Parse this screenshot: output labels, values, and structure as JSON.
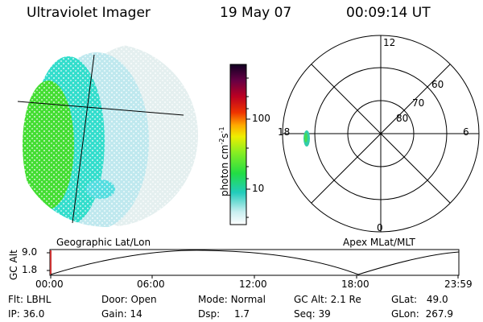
{
  "header": {
    "instrument": "Ultraviolet Imager",
    "date": "19 May 07",
    "time": "00:09:14 UT"
  },
  "panels": {
    "left_caption": "Geographic Lat/Lon",
    "right_caption": "Apex MLat/MLT"
  },
  "colorbar": {
    "label": "photon cm",
    "label_sup1": "-2",
    "label_mid": "s",
    "label_sup2": "-1",
    "ticks": [
      "100",
      "10"
    ]
  },
  "polar": {
    "lat_labels": [
      "60",
      "70",
      "80"
    ],
    "mlt_labels": [
      "12",
      "18",
      "6",
      "0"
    ]
  },
  "altitude_plot": {
    "ylabel": "GC Alt",
    "yticks": [
      "9.0",
      "1.8"
    ],
    "xticks": [
      "00:00",
      "06:00",
      "12:00",
      "18:00",
      "23:59"
    ]
  },
  "status": {
    "filter_label": "Flt:",
    "filter_value": "LBHL",
    "ip_label": "IP:",
    "ip_value": "36.0",
    "door_label": "Door:",
    "door_value": "Open",
    "gain_label": "Gain:",
    "gain_value": "14",
    "mode_label": "Mode:",
    "mode_value": "Normal",
    "dsp_label": "Dsp:",
    "dsp_value": "1.7",
    "gcalt_label": "GC Alt:",
    "gcalt_value": "2.1 Re",
    "seq_label": "Seq:",
    "seq_value": "39",
    "glat_label": "GLat:",
    "glat_value": "49.0",
    "glon_label": "GLon:",
    "glon_value": "267.9"
  },
  "colors": {
    "bright_green": "#44dd33",
    "cyan": "#33ddcc",
    "light_cyan": "#bde9ee",
    "pale": "#e2eeee"
  }
}
